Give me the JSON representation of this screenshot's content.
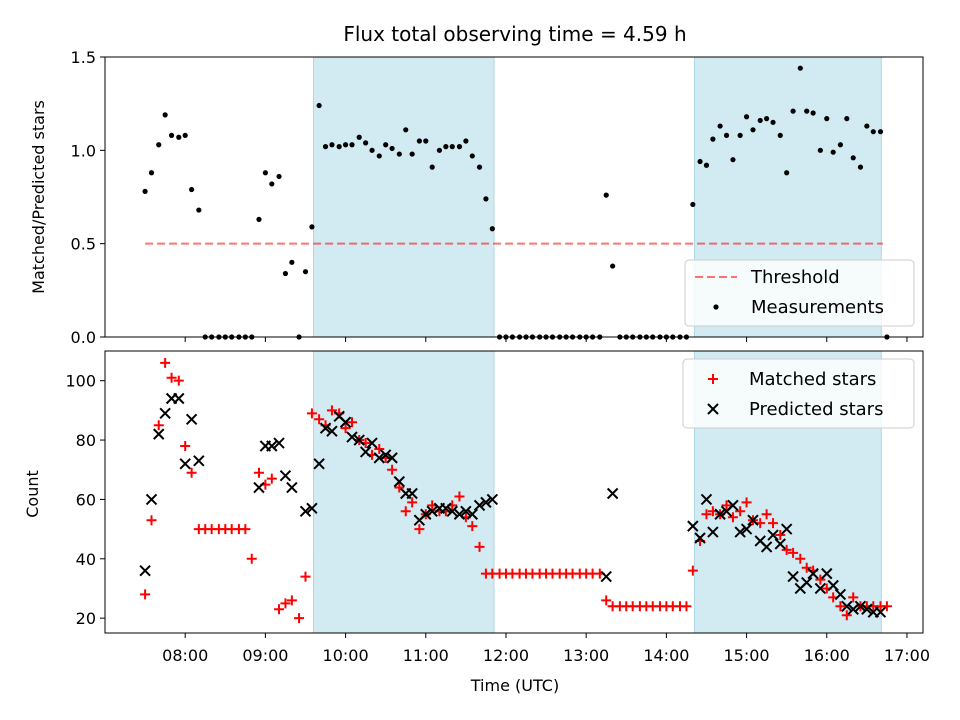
{
  "chart_data": [
    {
      "type": "scatter",
      "title": "Flux total observing time = 4.59 h",
      "xlabel": "",
      "ylabel": "Matched/Predicted stars",
      "xlim": [
        7.0,
        17.2
      ],
      "ylim": [
        0.0,
        1.5
      ],
      "yticks": [
        0.0,
        0.5,
        1.0,
        1.5
      ],
      "yticklabels": [
        "0.0",
        "0.5",
        "1.0",
        "1.5"
      ],
      "shaded_intervals": [
        [
          9.6,
          11.85
        ],
        [
          14.35,
          16.68
        ]
      ],
      "shade_color": "#add8e6",
      "threshold": {
        "name": "Threshold",
        "value": 0.5,
        "x": [
          7.5,
          16.7
        ],
        "color": "#ff0000",
        "style": "dashed"
      },
      "series": [
        {
          "name": "Measurements",
          "marker": "dot",
          "color": "#000000",
          "x": [
            7.5,
            7.58,
            7.67,
            7.75,
            7.83,
            7.92,
            8.0,
            8.08,
            8.17,
            8.25,
            8.33,
            8.42,
            8.5,
            8.58,
            8.67,
            8.75,
            8.83,
            8.92,
            9.0,
            9.08,
            9.17,
            9.25,
            9.33,
            9.42,
            9.5,
            9.58,
            9.67,
            9.75,
            9.83,
            9.92,
            10.0,
            10.08,
            10.17,
            10.25,
            10.33,
            10.42,
            10.5,
            10.58,
            10.67,
            10.75,
            10.83,
            10.92,
            11.0,
            11.08,
            11.17,
            11.25,
            11.33,
            11.42,
            11.5,
            11.58,
            11.67,
            11.75,
            11.83,
            11.92,
            12.0,
            12.08,
            12.17,
            12.25,
            12.33,
            12.42,
            12.5,
            12.58,
            12.67,
            12.75,
            12.83,
            12.92,
            13.0,
            13.08,
            13.17,
            13.25,
            13.33,
            13.42,
            13.5,
            13.58,
            13.67,
            13.75,
            13.83,
            13.92,
            14.0,
            14.08,
            14.17,
            14.25,
            14.33,
            14.42,
            14.5,
            14.58,
            14.67,
            14.75,
            14.83,
            14.92,
            15.0,
            15.08,
            15.17,
            15.25,
            15.33,
            15.42,
            15.5,
            15.58,
            15.67,
            15.75,
            15.83,
            15.92,
            16.0,
            16.08,
            16.17,
            16.25,
            16.33,
            16.42,
            16.5,
            16.58,
            16.67,
            16.75
          ],
          "y": [
            0.78,
            0.88,
            1.03,
            1.19,
            1.08,
            1.07,
            1.08,
            0.79,
            0.68,
            0.0,
            0.0,
            0.0,
            0.0,
            0.0,
            0.0,
            0.0,
            0.0,
            0.63,
            0.88,
            0.82,
            0.86,
            0.34,
            0.4,
            0.0,
            0.35,
            0.59,
            1.24,
            1.02,
            1.03,
            1.02,
            1.03,
            1.03,
            1.07,
            1.04,
            1.0,
            0.97,
            1.03,
            1.01,
            0.98,
            1.11,
            0.98,
            1.05,
            1.05,
            0.91,
            1.0,
            1.02,
            1.02,
            1.02,
            1.05,
            0.97,
            0.91,
            0.74,
            0.58,
            0.0,
            0.0,
            0.0,
            0.0,
            0.0,
            0.0,
            0.0,
            0.0,
            0.0,
            0.0,
            0.0,
            0.0,
            0.0,
            0.0,
            0.0,
            0.0,
            0.76,
            0.38,
            0.0,
            0.0,
            0.0,
            0.0,
            0.0,
            0.0,
            0.0,
            0.0,
            0.0,
            0.0,
            0.0,
            0.71,
            0.94,
            0.92,
            1.06,
            1.13,
            1.08,
            0.95,
            1.08,
            1.18,
            1.11,
            1.16,
            1.17,
            1.15,
            1.08,
            0.88,
            1.21,
            1.44,
            1.21,
            1.2,
            1.0,
            1.17,
            0.99,
            1.03,
            1.17,
            0.96,
            0.91,
            1.13,
            1.1,
            1.1,
            0.0
          ]
        }
      ],
      "legend": [
        "Threshold",
        "Measurements"
      ],
      "legend_position": "lower-right"
    },
    {
      "type": "scatter",
      "title": "",
      "xlabel": "Time (UTC)",
      "ylabel": "Count",
      "xlim": [
        7.0,
        17.2
      ],
      "ylim": [
        15.0,
        110.0
      ],
      "xticks": [
        8,
        9,
        10,
        11,
        12,
        13,
        14,
        15,
        16,
        17
      ],
      "xticklabels": [
        "08:00",
        "09:00",
        "10:00",
        "11:00",
        "12:00",
        "13:00",
        "14:00",
        "15:00",
        "16:00",
        "17:00"
      ],
      "yticks": [
        20,
        40,
        60,
        80,
        100
      ],
      "yticklabels": [
        "20",
        "40",
        "60",
        "80",
        "100"
      ],
      "shaded_intervals": [
        [
          9.6,
          11.85
        ],
        [
          14.35,
          16.68
        ]
      ],
      "shade_color": "#add8e6",
      "series": [
        {
          "name": "Matched stars",
          "marker": "plus",
          "color": "#ff0000",
          "x": [
            7.5,
            7.58,
            7.67,
            7.75,
            7.83,
            7.92,
            8.0,
            8.08,
            8.17,
            8.25,
            8.33,
            8.42,
            8.5,
            8.58,
            8.67,
            8.75,
            8.83,
            8.92,
            9.0,
            9.08,
            9.17,
            9.25,
            9.33,
            9.42,
            9.5,
            9.58,
            9.67,
            9.75,
            9.83,
            9.92,
            10.0,
            10.08,
            10.17,
            10.25,
            10.33,
            10.42,
            10.5,
            10.58,
            10.67,
            10.75,
            10.83,
            10.92,
            11.0,
            11.08,
            11.17,
            11.25,
            11.33,
            11.42,
            11.5,
            11.58,
            11.67,
            11.75,
            11.83,
            11.92,
            12.0,
            12.08,
            12.17,
            12.25,
            12.33,
            12.42,
            12.5,
            12.58,
            12.67,
            12.75,
            12.83,
            12.92,
            13.0,
            13.08,
            13.17,
            13.25,
            13.33,
            13.42,
            13.5,
            13.58,
            13.67,
            13.75,
            13.83,
            13.92,
            14.0,
            14.08,
            14.17,
            14.25,
            14.33,
            14.42,
            14.5,
            14.58,
            14.67,
            14.75,
            14.83,
            14.92,
            15.0,
            15.08,
            15.17,
            15.25,
            15.33,
            15.42,
            15.5,
            15.58,
            15.67,
            15.75,
            15.83,
            15.92,
            16.0,
            16.08,
            16.17,
            16.25,
            16.33,
            16.42,
            16.5,
            16.58,
            16.67,
            16.75
          ],
          "y": [
            28,
            53,
            85,
            106,
            101,
            100,
            78,
            69,
            50,
            50,
            50,
            50,
            50,
            50,
            50,
            50,
            40,
            69,
            65,
            67,
            23,
            25,
            26,
            20,
            34,
            89,
            87,
            85,
            90,
            89,
            84,
            86,
            80,
            79,
            75,
            77,
            74,
            70,
            64,
            56,
            59,
            50,
            55,
            58,
            56,
            56,
            58,
            61,
            54,
            51,
            44,
            35,
            35,
            35,
            35,
            35,
            35,
            35,
            35,
            35,
            35,
            35,
            35,
            35,
            35,
            35,
            35,
            35,
            35,
            26,
            24,
            24,
            24,
            24,
            24,
            24,
            24,
            24,
            24,
            24,
            24,
            24,
            36,
            46,
            55,
            56,
            55,
            58,
            54,
            56,
            59,
            53,
            52,
            55,
            52,
            48,
            43,
            42,
            40,
            37,
            36,
            33,
            30,
            27,
            24,
            21,
            27,
            24,
            24,
            24,
            24,
            24
          ],
          "labels_in_legend": true
        },
        {
          "name": "Predicted stars",
          "marker": "x",
          "color": "#000000",
          "x": [
            7.5,
            7.58,
            7.67,
            7.75,
            7.83,
            7.92,
            8.0,
            8.08,
            8.17,
            8.92,
            9.0,
            9.08,
            9.17,
            9.25,
            9.33,
            9.5,
            9.58,
            9.67,
            9.75,
            9.83,
            9.92,
            10.0,
            10.08,
            10.17,
            10.25,
            10.33,
            10.42,
            10.5,
            10.58,
            10.67,
            10.75,
            10.83,
            10.92,
            11.0,
            11.08,
            11.17,
            11.25,
            11.33,
            11.42,
            11.5,
            11.58,
            11.67,
            11.75,
            11.83,
            13.25,
            13.33,
            14.33,
            14.42,
            14.5,
            14.58,
            14.67,
            14.75,
            14.83,
            14.92,
            15.0,
            15.08,
            15.17,
            15.25,
            15.33,
            15.42,
            15.5,
            15.58,
            15.67,
            15.75,
            15.83,
            15.92,
            16.0,
            16.08,
            16.17,
            16.25,
            16.33,
            16.42,
            16.5,
            16.58,
            16.67
          ],
          "y": [
            36,
            60,
            82,
            89,
            94,
            94,
            72,
            87,
            73,
            64,
            78,
            78,
            79,
            68,
            64,
            56,
            57,
            72,
            84,
            83,
            88,
            86,
            81,
            80,
            76,
            79,
            74,
            75,
            74,
            66,
            62,
            62,
            53,
            55,
            56,
            57,
            57,
            56,
            55,
            56,
            55,
            58,
            59,
            60,
            34,
            62,
            51,
            47,
            60,
            49,
            55,
            56,
            58,
            49,
            50,
            53,
            46,
            44,
            48,
            45,
            50,
            34,
            30,
            32,
            35,
            30,
            35,
            31,
            28,
            24,
            23,
            24,
            23,
            22,
            22
          ],
          "labels_in_legend": true
        }
      ],
      "legend": [
        "Matched stars",
        "Predicted stars"
      ],
      "legend_position": "upper-right"
    }
  ]
}
